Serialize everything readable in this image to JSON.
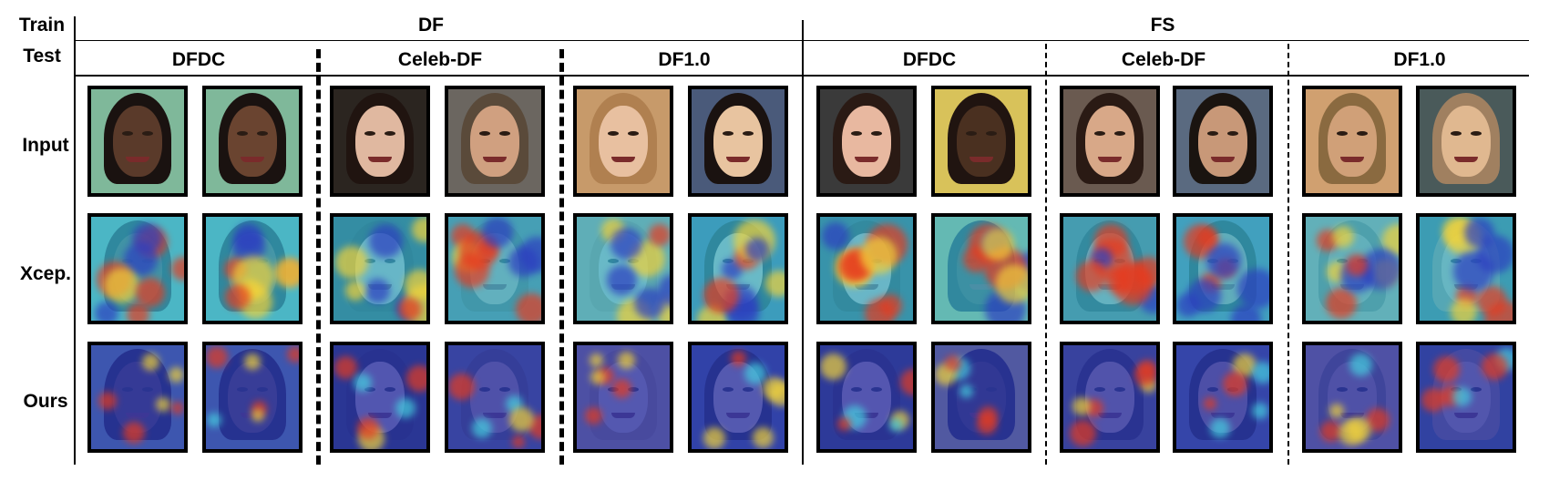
{
  "header": {
    "train_label": "Train",
    "test_label": "Test",
    "train_groups": [
      "DF",
      "FS"
    ],
    "test_groups": [
      "DFDC",
      "Celeb-DF",
      "DF1.0",
      "DFDC",
      "Celeb-DF",
      "DF1.0"
    ]
  },
  "rows": [
    "Input",
    "Xcep.",
    "Ours"
  ],
  "colors": {
    "dfdc_background": "#7fb89a",
    "heatmap_base_xcep": "#38b6d6",
    "heatmap_base_ours": "#2a3bb5",
    "heat_hot": "#e63b1f",
    "heat_warm": "#f2d33a"
  }
}
